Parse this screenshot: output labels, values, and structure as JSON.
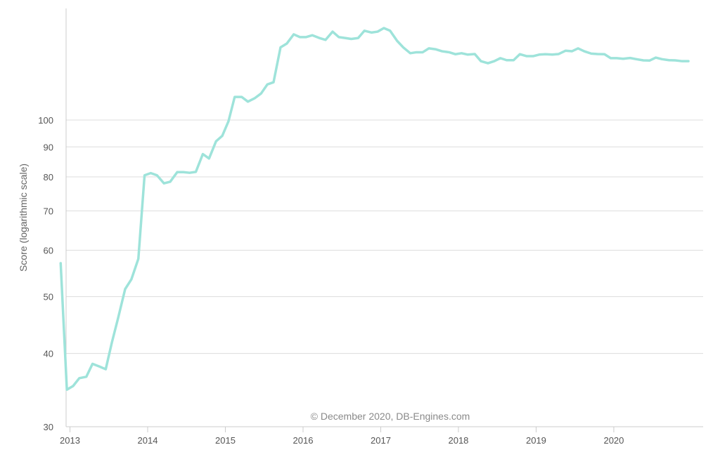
{
  "chart_data": {
    "type": "line",
    "title": "",
    "xlabel": "",
    "ylabel": "Score (logarithmic scale)",
    "y_scale": "log",
    "ylim": [
      30,
      155
    ],
    "xlim": [
      2012.95,
      2021.15
    ],
    "y_ticks": [
      30,
      40,
      50,
      60,
      70,
      80,
      90,
      100
    ],
    "x_ticks": [
      2013,
      2014,
      2015,
      2016,
      2017,
      2018,
      2019,
      2020
    ],
    "grid": true,
    "legend": "none",
    "credit": "© December 2020, DB-Engines.com",
    "colors": {
      "line": "#9ee3da",
      "grid": "#dddddd",
      "axis": "#cccccc"
    },
    "series": [
      {
        "name": "Score",
        "points": [
          [
            2012.88,
            57.0
          ],
          [
            2012.96,
            34.7
          ],
          [
            2013.04,
            35.2
          ],
          [
            2013.12,
            36.3
          ],
          [
            2013.21,
            36.5
          ],
          [
            2013.29,
            38.4
          ],
          [
            2013.38,
            38.0
          ],
          [
            2013.46,
            37.6
          ],
          [
            2013.54,
            41.8
          ],
          [
            2013.62,
            46.0
          ],
          [
            2013.71,
            51.5
          ],
          [
            2013.79,
            53.5
          ],
          [
            2013.88,
            58.0
          ],
          [
            2013.96,
            80.5
          ],
          [
            2014.04,
            81.2
          ],
          [
            2014.12,
            80.5
          ],
          [
            2014.21,
            78.0
          ],
          [
            2014.29,
            78.5
          ],
          [
            2014.38,
            81.5
          ],
          [
            2014.46,
            81.5
          ],
          [
            2014.54,
            81.3
          ],
          [
            2014.62,
            81.6
          ],
          [
            2014.71,
            87.5
          ],
          [
            2014.79,
            86.0
          ],
          [
            2014.88,
            92.0
          ],
          [
            2014.96,
            94.0
          ],
          [
            2015.04,
            99.5
          ],
          [
            2015.12,
            109.5
          ],
          [
            2015.21,
            109.5
          ],
          [
            2015.29,
            107.5
          ],
          [
            2015.38,
            109.0
          ],
          [
            2015.46,
            111.0
          ],
          [
            2015.54,
            115.0
          ],
          [
            2015.62,
            116.0
          ],
          [
            2015.71,
            133.0
          ],
          [
            2015.79,
            135.0
          ],
          [
            2015.88,
            140.0
          ],
          [
            2015.96,
            138.5
          ],
          [
            2016.04,
            138.5
          ],
          [
            2016.12,
            139.5
          ],
          [
            2016.21,
            138.0
          ],
          [
            2016.29,
            137.0
          ],
          [
            2016.38,
            141.5
          ],
          [
            2016.46,
            138.5
          ],
          [
            2016.54,
            138.0
          ],
          [
            2016.62,
            137.5
          ],
          [
            2016.71,
            138.0
          ],
          [
            2016.79,
            142.0
          ],
          [
            2016.88,
            141.0
          ],
          [
            2016.96,
            141.5
          ],
          [
            2017.04,
            143.5
          ],
          [
            2017.12,
            142.0
          ],
          [
            2017.21,
            136.5
          ],
          [
            2017.29,
            133.0
          ],
          [
            2017.38,
            130.0
          ],
          [
            2017.46,
            130.5
          ],
          [
            2017.54,
            130.5
          ],
          [
            2017.62,
            132.5
          ],
          [
            2017.71,
            132.0
          ],
          [
            2017.79,
            131.0
          ],
          [
            2017.88,
            130.5
          ],
          [
            2017.96,
            129.5
          ],
          [
            2018.04,
            130.0
          ],
          [
            2018.12,
            129.3
          ],
          [
            2018.21,
            129.6
          ],
          [
            2018.29,
            126.0
          ],
          [
            2018.38,
            125.0
          ],
          [
            2018.46,
            126.0
          ],
          [
            2018.54,
            127.5
          ],
          [
            2018.62,
            126.5
          ],
          [
            2018.71,
            126.5
          ],
          [
            2018.79,
            129.5
          ],
          [
            2018.88,
            128.5
          ],
          [
            2018.96,
            128.5
          ],
          [
            2019.04,
            129.3
          ],
          [
            2019.12,
            129.5
          ],
          [
            2019.21,
            129.3
          ],
          [
            2019.29,
            129.6
          ],
          [
            2019.38,
            131.3
          ],
          [
            2019.46,
            131.0
          ],
          [
            2019.54,
            132.5
          ],
          [
            2019.62,
            131.0
          ],
          [
            2019.71,
            129.8
          ],
          [
            2019.79,
            129.6
          ],
          [
            2019.88,
            129.5
          ],
          [
            2019.96,
            127.5
          ],
          [
            2020.04,
            127.5
          ],
          [
            2020.12,
            127.2
          ],
          [
            2020.21,
            127.6
          ],
          [
            2020.29,
            127.0
          ],
          [
            2020.38,
            126.4
          ],
          [
            2020.46,
            126.3
          ],
          [
            2020.54,
            127.8
          ],
          [
            2020.62,
            127.0
          ],
          [
            2020.71,
            126.5
          ],
          [
            2020.79,
            126.4
          ],
          [
            2020.88,
            126.0
          ],
          [
            2020.96,
            126.0
          ]
        ]
      }
    ]
  }
}
